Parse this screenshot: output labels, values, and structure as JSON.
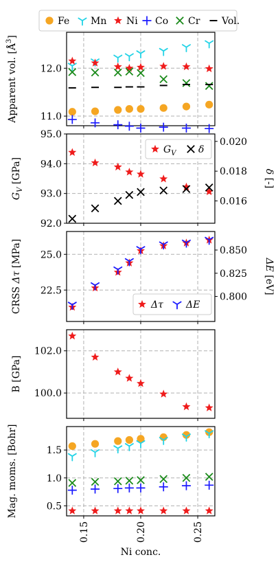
{
  "chart_data": {
    "type": "scatter",
    "x_shared": [
      0.14,
      0.16,
      0.18,
      0.19,
      0.2,
      0.22,
      0.24,
      0.26
    ],
    "xlabel": "Ni conc.",
    "xticks": [
      "0.15",
      "0.20",
      "0.25"
    ],
    "xlim": [
      0.135,
      0.265
    ],
    "grid": true,
    "panels": [
      {
        "id": "volume",
        "ylabel": "Apparent vol. [Å³]",
        "ylim": [
          10.8,
          12.75
        ],
        "yticks": [
          "11.0",
          "12.0"
        ],
        "legend": {
          "placement": "top",
          "entries": [
            "Fe",
            "Mn",
            "Ni",
            "Co",
            "Cr",
            "Vol."
          ]
        },
        "series": [
          {
            "name": "Fe",
            "marker": "circle",
            "color": "#f5a623",
            "values": [
              11.09,
              11.1,
              11.13,
              11.15,
              11.15,
              11.17,
              11.2,
              11.24
            ]
          },
          {
            "name": "Mn",
            "marker": "tri",
            "color": "#22d3e6",
            "values": [
              12.05,
              12.14,
              12.22,
              12.25,
              12.31,
              12.36,
              12.44,
              12.52
            ]
          },
          {
            "name": "Ni",
            "marker": "star",
            "color": "#ef1c1c",
            "values": [
              12.15,
              12.11,
              12.03,
              12.0,
              12.02,
              12.04,
              12.03,
              11.99
            ]
          },
          {
            "name": "Co",
            "marker": "plus",
            "color": "#1a1aff",
            "values": [
              10.93,
              10.86,
              10.82,
              10.79,
              10.75,
              10.77,
              10.75,
              10.74
            ]
          },
          {
            "name": "Cr",
            "marker": "x",
            "color": "#1a8a1a",
            "values": [
              11.92,
              11.91,
              11.91,
              11.93,
              11.9,
              11.77,
              11.69,
              11.63
            ]
          },
          {
            "name": "Vol.",
            "marker": "dash",
            "color": "#000000",
            "values": [
              11.59,
              11.6,
              11.6,
              11.61,
              11.61,
              11.64,
              11.66,
              11.66
            ]
          }
        ]
      },
      {
        "id": "gv",
        "ylabel": "G_V [GPa]",
        "ylim": [
          92.0,
          95.0
        ],
        "yticks": [
          "92.0",
          "93.0",
          "94.0",
          "95.0"
        ],
        "ylabel_right": "δ [-]",
        "ylim_right": [
          0.0145,
          0.0205
        ],
        "yticks_right": [
          "0.016",
          "0.018",
          "0.020"
        ],
        "legend": {
          "placement": "top-right",
          "entries": [
            "G_V",
            "δ"
          ]
        },
        "series": [
          {
            "name": "G_V",
            "marker": "star",
            "color": "#ef1c1c",
            "axis": "left",
            "values": [
              94.38,
              94.03,
              93.89,
              93.72,
              93.65,
              93.49,
              93.22,
              93.06
            ]
          },
          {
            "name": "δ",
            "marker": "x",
            "color": "#000000",
            "axis": "right",
            "values": [
              0.0148,
              0.0155,
              0.016,
              0.0164,
              0.0166,
              0.0167,
              0.0168,
              0.0169
            ]
          }
        ]
      },
      {
        "id": "crss",
        "ylabel": "CRSS Δτ [MPa]",
        "ylim": [
          20.3,
          26.6
        ],
        "yticks": [
          "22.5",
          "25.0"
        ],
        "ylabel_right": "ΔE [eV]",
        "ylim_right": [
          0.773,
          0.87
        ],
        "yticks_right": [
          "0.800",
          "0.825",
          "0.850"
        ],
        "legend": {
          "placement": "bottom-right",
          "entries": [
            "Δτ",
            "ΔE"
          ]
        },
        "series": [
          {
            "name": "Δτ",
            "marker": "star",
            "color": "#ef1c1c",
            "axis": "left",
            "values": [
              21.3,
              22.65,
              23.75,
              24.4,
              25.25,
              25.6,
              25.8,
              26.0
            ]
          },
          {
            "name": "ΔE",
            "marker": "tri",
            "color": "#1a1aff",
            "axis": "right",
            "values": [
              0.791,
              0.812,
              0.829,
              0.838,
              0.851,
              0.856,
              0.858,
              0.861
            ]
          }
        ]
      },
      {
        "id": "bulk",
        "ylabel": "B [GPa]",
        "ylim": [
          98.8,
          103.0
        ],
        "yticks": [
          "100.0",
          "102.0"
        ],
        "series": [
          {
            "name": "B",
            "marker": "star",
            "color": "#ef1c1c",
            "values": [
              102.7,
              101.7,
              101.0,
              100.7,
              100.45,
              99.95,
              99.35,
              99.3
            ]
          }
        ]
      },
      {
        "id": "magmom",
        "ylabel": "Mag. moms. [Bohr]",
        "ylim": [
          0.32,
          1.92
        ],
        "yticks": [
          "0.5",
          "1.0",
          "1.5"
        ],
        "series": [
          {
            "name": "Fe",
            "marker": "circle",
            "color": "#f5a623",
            "values": [
              1.57,
              1.61,
              1.66,
              1.68,
              1.7,
              1.73,
              1.77,
              1.82
            ]
          },
          {
            "name": "Mn",
            "marker": "tri",
            "color": "#22d3e6",
            "values": [
              1.39,
              1.46,
              1.53,
              1.57,
              1.62,
              1.68,
              1.74,
              1.8
            ]
          },
          {
            "name": "Ni",
            "marker": "star",
            "color": "#ef1c1c",
            "values": [
              0.41,
              0.41,
              0.41,
              0.41,
              0.41,
              0.41,
              0.41,
              0.41
            ]
          },
          {
            "name": "Co",
            "marker": "plus",
            "color": "#1a1aff",
            "values": [
              0.78,
              0.8,
              0.81,
              0.82,
              0.82,
              0.84,
              0.86,
              0.87
            ]
          },
          {
            "name": "Cr",
            "marker": "x",
            "color": "#1a8a1a",
            "values": [
              0.91,
              0.93,
              0.94,
              0.95,
              0.96,
              0.98,
              1.0,
              1.02
            ]
          }
        ]
      }
    ]
  }
}
